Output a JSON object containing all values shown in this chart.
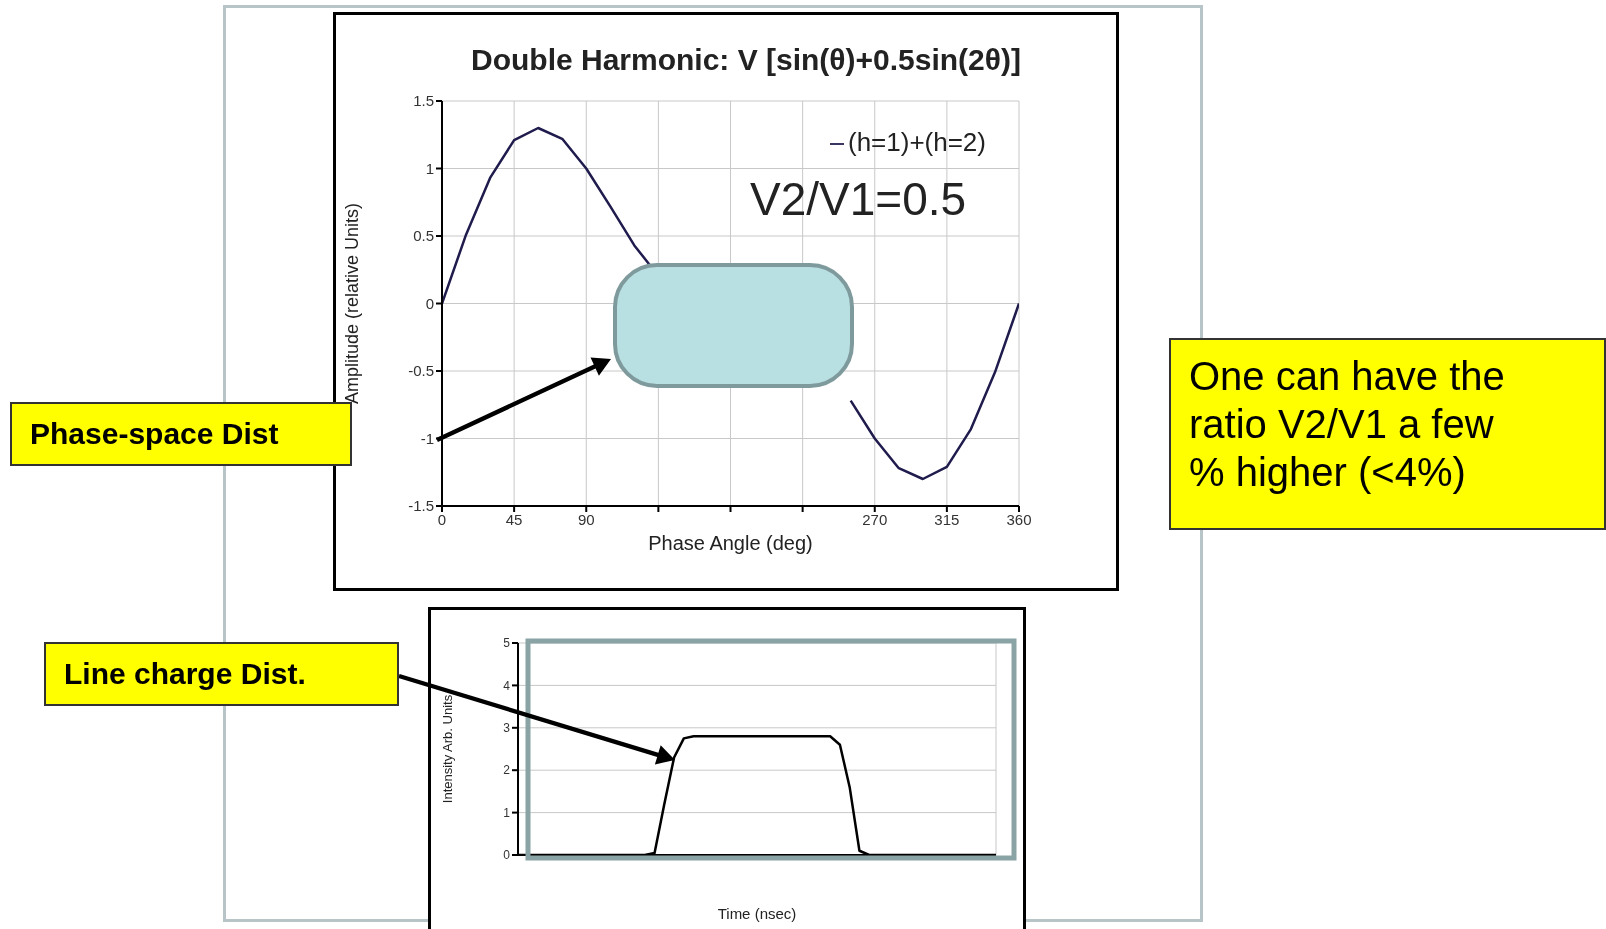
{
  "chart_data": [
    {
      "type": "line",
      "title": "Double Harmonic: V [sin(θ)+0.5sin(2θ)]",
      "xlabel": "Phase Angle (deg)",
      "ylabel": "Amplitude (relative Units)",
      "x": [
        0,
        15,
        30,
        45,
        60,
        75,
        90,
        105,
        120,
        130,
        180,
        255,
        270,
        285,
        300,
        315,
        330,
        345,
        360
      ],
      "series": [
        {
          "name": "(h=1)+(h=2)",
          "color": "#1f1b4d",
          "values": [
            0,
            0.51,
            0.93,
            1.21,
            1.3,
            1.22,
            1,
            0.72,
            0.43,
            0.28,
            null,
            -0.72,
            -1,
            -1.22,
            -1.3,
            -1.21,
            -0.93,
            -0.51,
            0
          ]
        }
      ],
      "xlim": [
        0,
        360
      ],
      "xticks": [
        0,
        45,
        90,
        {
          "value": 135,
          "label": null
        },
        {
          "value": 180,
          "label": null
        },
        {
          "value": 225,
          "label": null
        },
        270,
        315,
        360
      ],
      "ylim": [
        -1.5,
        1.5
      ],
      "yticks": [
        -1.5,
        -1,
        -0.5,
        0,
        0.5,
        1,
        1.5
      ],
      "grid": true,
      "legend": "top right",
      "annotations": [
        "V2/V1=0.5",
        "Phase-space Dist",
        "One can have the ratio V2/V1 a few % higher (<4%)"
      ]
    },
    {
      "type": "line",
      "xlabel": "Time (nsec)",
      "ylabel": "Intensity Arb. Units",
      "categories": [
        null,
        null,
        null,
        null,
        null,
        null,
        null,
        null,
        null,
        null,
        null,
        null,
        null,
        null,
        null,
        null,
        null,
        null,
        null,
        null,
        null,
        null,
        null,
        null,
        null,
        null,
        null,
        null,
        null,
        null,
        null,
        null,
        null,
        null,
        null,
        null,
        null,
        null,
        null,
        null,
        null,
        null,
        null,
        null,
        null,
        null,
        null,
        null,
        null,
        null
      ],
      "values": [
        0,
        0,
        0,
        0,
        0,
        0,
        0,
        0,
        0,
        0,
        0,
        0,
        0,
        0,
        0.05,
        1.2,
        2.3,
        2.75,
        2.8,
        2.8,
        2.8,
        2.8,
        2.8,
        2.8,
        2.8,
        2.8,
        2.8,
        2.8,
        2.8,
        2.8,
        2.8,
        2.8,
        2.8,
        2.6,
        1.6,
        0.1,
        0,
        0,
        0,
        0,
        0,
        0,
        0,
        0,
        0,
        0,
        0,
        0,
        0,
        0
      ],
      "color": "#000000",
      "ylim": [
        0,
        5
      ],
      "yticks": [
        0,
        1,
        2,
        3,
        4,
        5
      ],
      "grid": true,
      "tick_labels": "y",
      "annotations": [
        "Line charge Dist."
      ]
    }
  ]
}
